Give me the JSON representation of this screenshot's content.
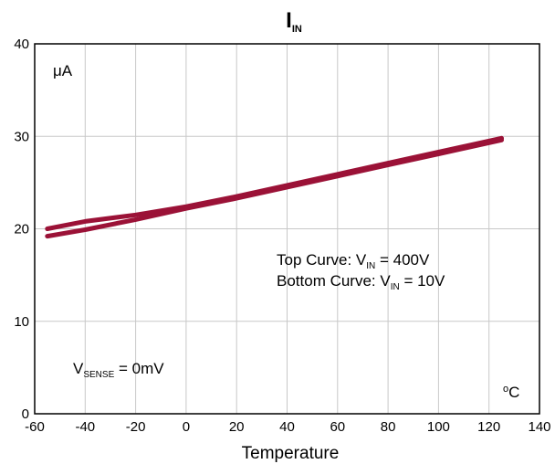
{
  "chart_data": {
    "type": "line",
    "title": "I",
    "title_sub": "IN",
    "xlabel": "Temperature",
    "x_unit": "°C",
    "x_unit_sup": "o",
    "x_unit_main": "C",
    "y_unit": "μA",
    "xlim": [
      -60,
      140
    ],
    "ylim": [
      0,
      40
    ],
    "x_ticks": [
      -60,
      -40,
      -20,
      0,
      20,
      40,
      60,
      80,
      100,
      120,
      140
    ],
    "y_ticks": [
      0,
      10,
      20,
      30,
      40
    ],
    "grid": true,
    "series_color": "#9b1237",
    "series": [
      {
        "name": "Top Curve",
        "x": [
          -55,
          -40,
          -20,
          0,
          20,
          40,
          60,
          80,
          100,
          125
        ],
        "y": [
          20.0,
          20.8,
          21.5,
          22.4,
          23.5,
          24.7,
          25.9,
          27.1,
          28.3,
          29.8
        ]
      },
      {
        "name": "Bottom Curve",
        "x": [
          -55,
          -40,
          -20,
          0,
          20,
          40,
          60,
          80,
          100,
          125
        ],
        "y": [
          19.2,
          19.9,
          21.0,
          22.2,
          23.3,
          24.5,
          25.7,
          26.9,
          28.1,
          29.6
        ]
      }
    ],
    "annotations": {
      "top_curve": {
        "label": "Top Curve:  V",
        "sub": "IN",
        "value": " = 400V"
      },
      "bottom_curve": {
        "label": "Bottom Curve: V",
        "sub": "IN",
        "value": " = 10V"
      },
      "vsense": {
        "label": "V",
        "sub": "SENSE",
        "value": " = 0mV"
      }
    }
  }
}
